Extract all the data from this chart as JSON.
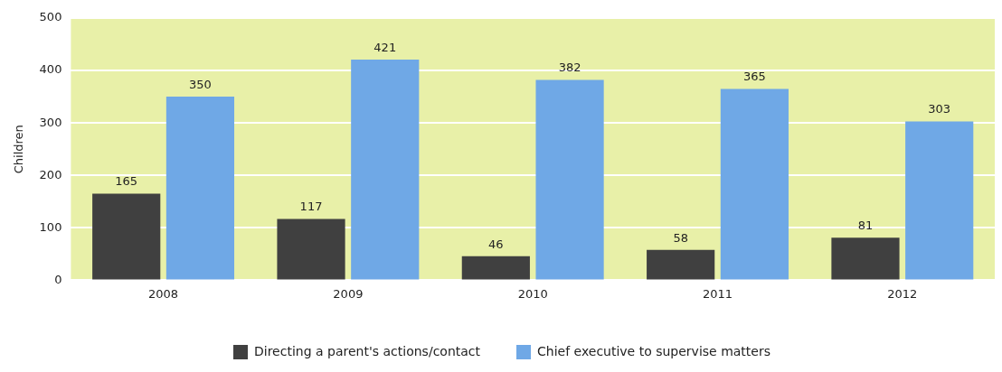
{
  "chart_data": {
    "type": "bar",
    "ylabel": "Children",
    "categories": [
      "2008",
      "2009",
      "2010",
      "2011",
      "2012"
    ],
    "series": [
      {
        "name": "Directing a parent's actions/contact",
        "color": "#404040",
        "values": [
          165,
          117,
          46,
          58,
          81
        ]
      },
      {
        "name": "Chief executive to supervise matters",
        "color": "#6fa8e6",
        "values": [
          350,
          421,
          382,
          365,
          303
        ]
      }
    ],
    "ylim": [
      0,
      500
    ],
    "yticks": [
      0,
      100,
      200,
      300,
      400,
      500
    ],
    "grid": "y",
    "legend": "bottom",
    "data_labels": true
  }
}
